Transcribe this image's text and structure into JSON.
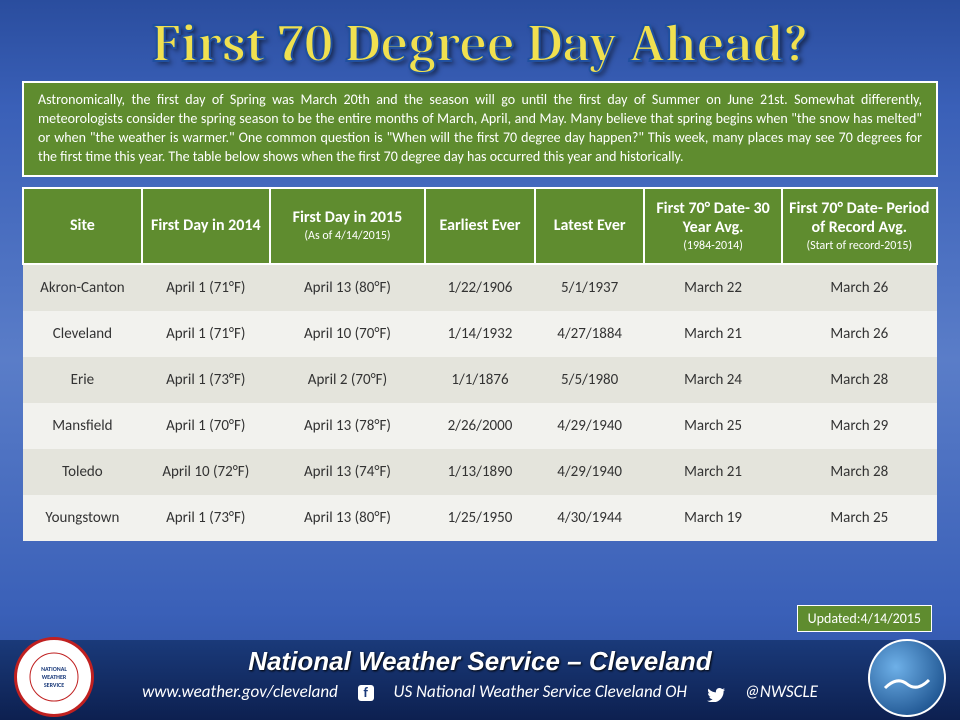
{
  "title": "First 70 Degree Day Ahead?",
  "intro": "Astronomically, the first day of Spring was March 20th and the season will go until the first day of Summer on June 21st. Somewhat differently, meteorologists consider the spring season to be the entire months of March, April, and May. Many believe that spring begins when \"the snow has melted\" or when \"the weather is warmer.\" One common question is \"When will the first 70 degree day happen?\" This week, many places may see 70 degrees for the first time this year. The table below shows when the first 70 degree day has occurred this year and historically.",
  "columns": [
    {
      "main": "Site",
      "sub": ""
    },
    {
      "main": "First Day in 2014",
      "sub": ""
    },
    {
      "main": "First Day in 2015",
      "sub": "(As of 4/14/2015)"
    },
    {
      "main": "Earliest Ever",
      "sub": ""
    },
    {
      "main": "Latest Ever",
      "sub": ""
    },
    {
      "main": "First 70° Date- 30 Year Avg.",
      "sub": "(1984-2014)"
    },
    {
      "main": "First 70° Date- Period of Record Avg.",
      "sub": "(Start of record-2015)"
    }
  ],
  "rows": [
    [
      "Akron-Canton",
      "April 1 (71°F)",
      "April 13 (80°F)",
      "1/22/1906",
      "5/1/1937",
      "March 22",
      "March 26"
    ],
    [
      "Cleveland",
      "April 1 (71°F)",
      "April 10 (70°F)",
      "1/14/1932",
      "4/27/1884",
      "March 21",
      "March 26"
    ],
    [
      "Erie",
      "April 1 (73°F)",
      "April 2 (70°F)",
      "1/1/1876",
      "5/5/1980",
      "March 24",
      "March 28"
    ],
    [
      "Mansfield",
      "April 1 (70°F)",
      "April 13 (78°F)",
      "2/26/2000",
      "4/29/1940",
      "March 25",
      "March 29"
    ],
    [
      "Toledo",
      "April 10 (72°F)",
      "April 13 (74°F)",
      "1/13/1890",
      "4/29/1940",
      "March 21",
      "March 28"
    ],
    [
      "Youngstown",
      "April 1 (73°F)",
      "April 13 (80°F)",
      "1/25/1950",
      "4/30/1944",
      "March 19",
      "March 25"
    ]
  ],
  "updated_label": "Updated:4/14/2015",
  "footer": {
    "org": "National Weather Service – Cleveland",
    "url": "www.weather.gov/cleveland",
    "fb": "US National Weather Service Cleveland OH",
    "tw": "@NWSCLE",
    "left_logo": "NATIONAL WEATHER SERVICE",
    "right_logo": "NOAA"
  },
  "colors": {
    "header_bg": "#5f8c2f",
    "row_odd": "#e4e4dc",
    "row_even": "#f2f2ee",
    "title_color": "#f0e050",
    "bg_gradient_top": "#2a4d9e",
    "bg_gradient_mid": "#5a7dc8"
  },
  "column_widths": [
    "13%",
    "14%",
    "17%",
    "12%",
    "12%",
    "15%",
    "17%"
  ]
}
